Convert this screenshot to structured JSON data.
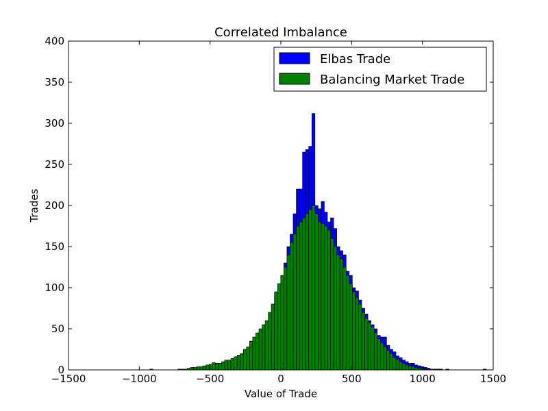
{
  "chart_data": {
    "type": "bar",
    "title": "Correlated Imbalance",
    "xlabel": "Value of Trade",
    "ylabel": "Trades",
    "xlim": [
      -1500,
      1500
    ],
    "ylim": [
      0,
      400
    ],
    "xticks": [
      -1500,
      -1000,
      -500,
      0,
      500,
      1000,
      1500
    ],
    "yticks": [
      0,
      50,
      100,
      150,
      200,
      250,
      300,
      350,
      400
    ],
    "xtick_labels": [
      "−1500",
      "−1000",
      "−500",
      "0",
      "500",
      "1000",
      "1500"
    ],
    "ytick_labels": [
      "0",
      "50",
      "100",
      "150",
      "200",
      "250",
      "300",
      "350",
      "400"
    ],
    "grid": false,
    "legend_position": "top-right",
    "bin_start": -925,
    "bin_width": 22,
    "series": [
      {
        "name": "Elbas Trade",
        "color": "#0000ff",
        "values": [
          1,
          0,
          0,
          0,
          0,
          0,
          0,
          0,
          0,
          1,
          0,
          0,
          0,
          1,
          0,
          1,
          0,
          1,
          1,
          2,
          4,
          3,
          5,
          6,
          9,
          8,
          11,
          14,
          16,
          19,
          22,
          24,
          30,
          35,
          40,
          44,
          45,
          50,
          60,
          80,
          90,
          100,
          110,
          130,
          150,
          165,
          190,
          220,
          220,
          265,
          268,
          272,
          312,
          200,
          196,
          205,
          192,
          180,
          185,
          172,
          150,
          145,
          140,
          120,
          115,
          100,
          96,
          85,
          75,
          68,
          60,
          55,
          50,
          42,
          40,
          40,
          30,
          25,
          22,
          17,
          15,
          12,
          10,
          8,
          8,
          6,
          5,
          4,
          3,
          2,
          1,
          1,
          1,
          1,
          0,
          1,
          0,
          0,
          0,
          0,
          0,
          0,
          0,
          0,
          0,
          0,
          0,
          1,
          0,
          0,
          0,
          0
        ]
      },
      {
        "name": "Balancing Market Trade",
        "color": "#008000",
        "values": [
          1,
          0,
          0,
          0,
          0,
          0,
          0,
          0,
          0,
          1,
          1,
          1,
          2,
          3,
          3,
          4,
          4,
          5,
          6,
          7,
          9,
          8,
          8,
          10,
          12,
          12,
          14,
          16,
          18,
          20,
          25,
          28,
          35,
          40,
          45,
          50,
          55,
          60,
          70,
          80,
          95,
          105,
          115,
          125,
          140,
          155,
          165,
          175,
          180,
          185,
          190,
          195,
          200,
          190,
          180,
          178,
          175,
          170,
          160,
          150,
          140,
          135,
          125,
          115,
          105,
          95,
          88,
          80,
          70,
          63,
          58,
          52,
          45,
          38,
          33,
          28,
          24,
          20,
          15,
          13,
          10,
          8,
          6,
          5,
          4,
          3,
          2,
          2,
          1,
          1,
          1,
          0,
          0,
          0,
          0,
          0,
          0,
          0,
          0,
          0,
          0,
          0,
          0,
          0,
          0,
          0,
          0,
          0,
          0,
          0,
          0,
          0
        ]
      }
    ]
  }
}
